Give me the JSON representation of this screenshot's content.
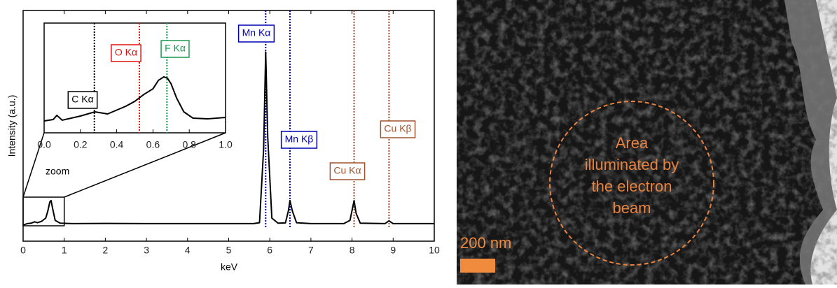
{
  "chart_data": [
    {
      "type": "line",
      "xlabel": "keV",
      "ylabel": "Intensity (a.u.)",
      "x": [
        0,
        0.1,
        0.2,
        0.28,
        0.35,
        0.45,
        0.55,
        0.6,
        0.65,
        0.68,
        0.72,
        0.78,
        0.9,
        1.2,
        2,
        3,
        4,
        5,
        5.6,
        5.75,
        5.85,
        5.9,
        5.95,
        6.05,
        6.2,
        6.38,
        6.45,
        6.49,
        6.55,
        6.65,
        7,
        7.8,
        7.95,
        8.02,
        8.05,
        8.1,
        8.2,
        8.8,
        8.9,
        9.0,
        10
      ],
      "values": [
        7,
        7.6,
        7.8,
        8.4,
        8,
        8.6,
        10,
        13,
        17,
        17.6,
        14,
        9,
        7.8,
        7.6,
        7.7,
        7.6,
        7.6,
        7.6,
        7.6,
        8,
        40,
        82,
        45,
        10,
        7.8,
        7.9,
        13,
        17.6,
        13,
        8,
        7.6,
        7.6,
        9,
        15,
        17.6,
        12,
        7.8,
        7.6,
        8.8,
        7.6,
        7.6
      ],
      "color": "#000000",
      "xlim": [
        0,
        10
      ],
      "xticks": [
        0,
        1,
        2,
        3,
        4,
        5,
        6,
        7,
        8,
        9,
        10
      ],
      "ylim": [
        0,
        100
      ],
      "annotations": [
        {
          "label": "Mn Kα",
          "x": 5.9,
          "color": "#0000b4"
        },
        {
          "label": "Mn Kβ",
          "x": 6.49,
          "color": "#0000b4"
        },
        {
          "label": "Cu Kα",
          "x": 8.05,
          "color": "#a0522d"
        },
        {
          "label": "Cu Kβ",
          "x": 8.9,
          "color": "#a0522d"
        }
      ]
    },
    {
      "type": "line",
      "annotation": "zoom",
      "x": [
        0,
        0.05,
        0.07,
        0.1,
        0.2,
        0.28,
        0.35,
        0.45,
        0.5,
        0.55,
        0.6,
        0.63,
        0.66,
        0.68,
        0.7,
        0.73,
        0.77,
        0.82,
        0.9,
        1.0
      ],
      "values": [
        10.8,
        12.1,
        15.9,
        11.5,
        15.3,
        19.1,
        17.2,
        24.2,
        28.7,
        35,
        40.1,
        47.8,
        51,
        49.7,
        44.6,
        31.8,
        19.1,
        13.4,
        12.7,
        14
      ],
      "color": "#000000",
      "xlim": [
        0,
        1
      ],
      "xticks": [
        {
          "value": 0,
          "label": "0.0"
        },
        {
          "value": 0.2,
          "label": "0.2"
        },
        {
          "value": 0.4,
          "label": "0.4"
        },
        {
          "value": 0.6,
          "label": "0.6"
        },
        {
          "value": 0.8,
          "label": "0.8"
        },
        {
          "value": 1,
          "label": "1.0"
        }
      ],
      "ylim": [
        0,
        100
      ],
      "annotations": [
        {
          "label": "C Kα",
          "x": 0.277,
          "color": "#000000"
        },
        {
          "label": "O Kα",
          "x": 0.525,
          "color": "#e01010"
        },
        {
          "label": "F Kα",
          "x": 0.677,
          "color": "#1a9a50"
        }
      ]
    }
  ],
  "image": {
    "annotation_lines": [
      "Area",
      "illuminated by",
      "the electron",
      "beam"
    ],
    "scale_bar": "200 nm"
  }
}
